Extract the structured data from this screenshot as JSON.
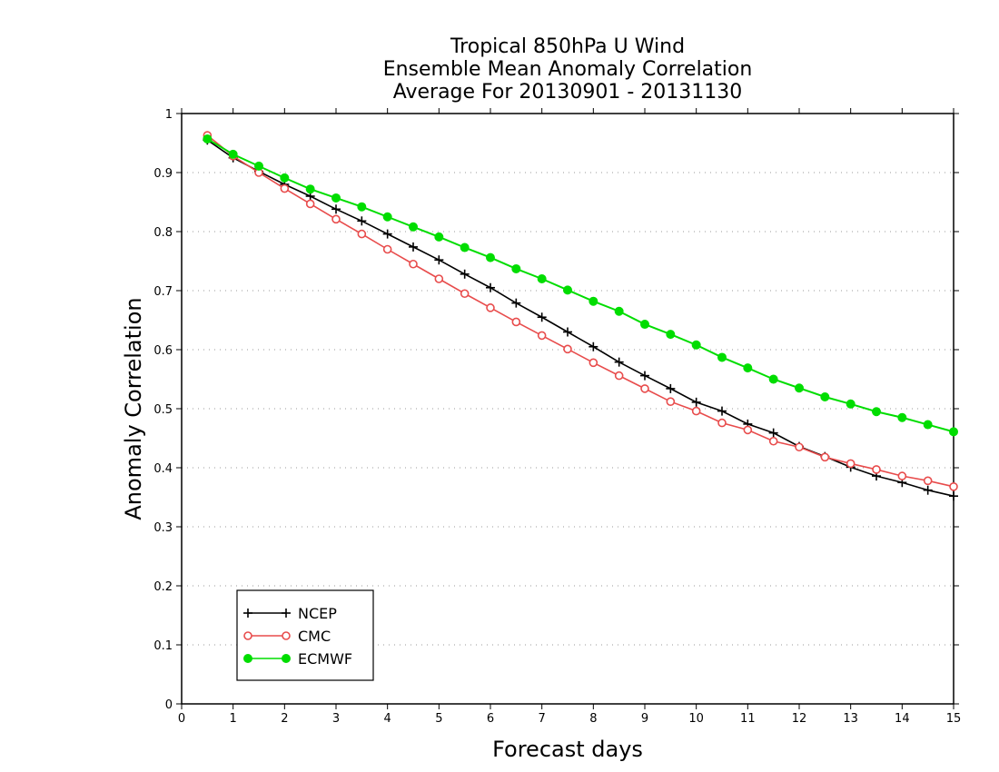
{
  "chart_data": {
    "type": "line",
    "title_lines": [
      "Tropical 850hPa U Wind",
      "Ensemble Mean Anomaly Correlation",
      "Average For 20130901 - 20131130"
    ],
    "xlabel": "Forecast days",
    "ylabel": "Anomaly Correlation",
    "xlim": [
      0,
      15
    ],
    "ylim": [
      0,
      1
    ],
    "x_ticks": [
      0,
      1,
      2,
      3,
      4,
      5,
      6,
      7,
      8,
      9,
      10,
      11,
      12,
      13,
      14,
      15
    ],
    "y_ticks": [
      0,
      0.1,
      0.2,
      0.3,
      0.4,
      0.5,
      0.6,
      0.7,
      0.8,
      0.9,
      1
    ],
    "y_tick_labels": [
      "0",
      "0.1",
      "0.2",
      "0.3",
      "0.4",
      "0.5",
      "0.6",
      "0.7",
      "0.8",
      "0.9",
      "1"
    ],
    "grid": "horizontal dotted",
    "legend_position": "bottom-left",
    "x": [
      0.5,
      1,
      1.5,
      2,
      2.5,
      3,
      3.5,
      4,
      4.5,
      5,
      5.5,
      6,
      6.5,
      7,
      7.5,
      8,
      8.5,
      9,
      9.5,
      10,
      10.5,
      11,
      11.5,
      12,
      12.5,
      13,
      13.5,
      14,
      14.5,
      15
    ],
    "series": [
      {
        "name": "NCEP",
        "color": "#000000",
        "marker": "plus",
        "values": [
          0.955,
          0.925,
          0.902,
          0.88,
          0.86,
          0.838,
          0.818,
          0.796,
          0.774,
          0.752,
          0.728,
          0.705,
          0.679,
          0.655,
          0.63,
          0.605,
          0.579,
          0.556,
          0.534,
          0.511,
          0.496,
          0.474,
          0.459,
          0.436,
          0.419,
          0.401,
          0.386,
          0.375,
          0.362,
          0.352
        ]
      },
      {
        "name": "CMC",
        "color": "#e84c4c",
        "marker": "open-circle",
        "values": [
          0.963,
          0.928,
          0.9,
          0.873,
          0.847,
          0.821,
          0.796,
          0.77,
          0.745,
          0.72,
          0.695,
          0.671,
          0.647,
          0.624,
          0.601,
          0.578,
          0.556,
          0.534,
          0.512,
          0.496,
          0.476,
          0.464,
          0.445,
          0.435,
          0.418,
          0.407,
          0.397,
          0.386,
          0.378,
          0.368
        ]
      },
      {
        "name": "ECMWF",
        "color": "#00dd00",
        "marker": "filled-circle",
        "values": [
          0.957,
          0.931,
          0.911,
          0.891,
          0.872,
          0.857,
          0.842,
          0.825,
          0.808,
          0.791,
          0.773,
          0.756,
          0.737,
          0.72,
          0.701,
          0.682,
          0.665,
          0.643,
          0.626,
          0.608,
          0.587,
          0.569,
          0.55,
          0.535,
          0.52,
          0.508,
          0.495,
          0.485,
          0.473,
          0.461
        ]
      }
    ]
  }
}
